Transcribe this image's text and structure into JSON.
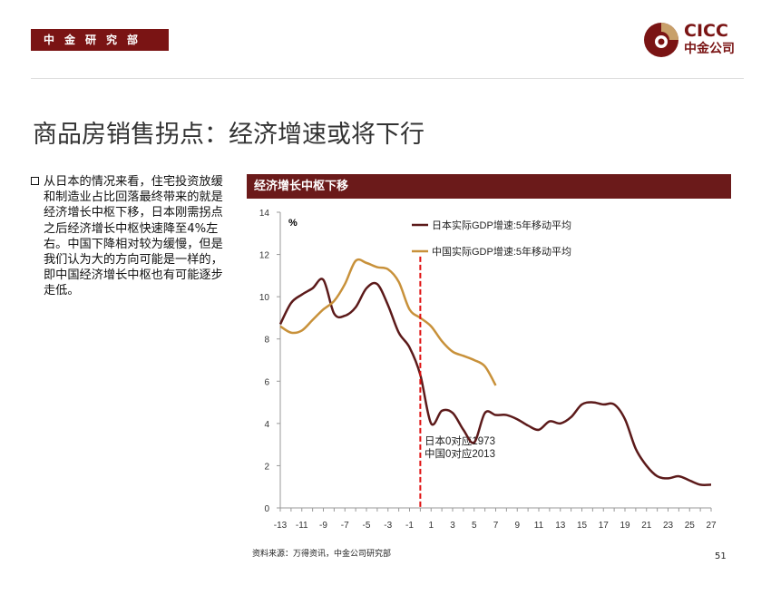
{
  "header": {
    "department": "中金研究部",
    "logo_en": "CICC",
    "logo_cn": "中金公司"
  },
  "title": "商品房销售拐点：经济增速或将下行",
  "bullet": "从日本的情况来看，住宅投资放缓和制造业占比回落最终带来的就是经济增长中枢下移，日本刚需拐点之后经济增长中枢快速降至4%左右。中国下降相对较为缓慢，但是我们认为大的方向可能是一样的，即中国经济增长中枢也有可能逐步走低。",
  "chart_header": "经济增长中枢下移",
  "source": "资料来源：万得资讯，中金公司研究部",
  "page_number": "51",
  "colors": {
    "brand": "#7a1414",
    "japan": "#5c1a1a",
    "china": "#c8913a",
    "marker": "#e01010"
  },
  "chart_data": {
    "type": "line",
    "ylabel": "%",
    "xlim": [
      -13,
      27
    ],
    "ylim": [
      0,
      14
    ],
    "yticks": [
      0,
      2,
      4,
      6,
      8,
      10,
      12,
      14
    ],
    "xticks": [
      -13,
      -11,
      -9,
      -7,
      -5,
      -3,
      -1,
      1,
      3,
      5,
      7,
      9,
      11,
      13,
      15,
      17,
      19,
      21,
      23,
      25,
      27
    ],
    "annotation": [
      "日本0对应1973",
      "中国0对应2013"
    ],
    "vline_x": 0,
    "legend_position": "top-center",
    "series": [
      {
        "name": "日本实际GDP增速:5年移动平均",
        "x_start": -13,
        "values": [
          8.7,
          9.7,
          10.1,
          10.4,
          10.8,
          9.2,
          9.1,
          9.5,
          10.4,
          10.6,
          9.6,
          8.3,
          7.6,
          6.3,
          4.0,
          4.6,
          4.5,
          3.7,
          3.1,
          4.5,
          4.4,
          4.4,
          4.2,
          3.9,
          3.7,
          4.1,
          4.0,
          4.3,
          4.9,
          5.0,
          4.9,
          4.9,
          4.2,
          2.8,
          2.0,
          1.5,
          1.4,
          1.5,
          1.3,
          1.1,
          1.1
        ]
      },
      {
        "name": "中国实际GDP增速:5年移动平均",
        "x_start": -13,
        "values": [
          8.6,
          8.3,
          8.4,
          8.9,
          9.4,
          9.8,
          10.6,
          11.7,
          11.6,
          11.4,
          11.3,
          10.7,
          9.4,
          9.0,
          8.6,
          7.9,
          7.4,
          7.2,
          7.0,
          6.7,
          5.8
        ]
      }
    ]
  }
}
